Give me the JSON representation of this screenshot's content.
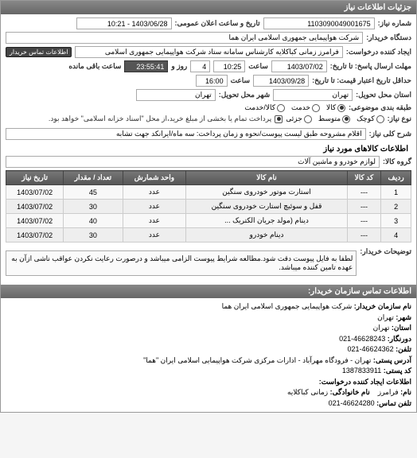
{
  "panel_title": "جزئیات اطلاعات نیاز",
  "request_number_label": "شماره نیاز:",
  "request_number": "1103090049001675",
  "datetime_label": "تاریخ و ساعت اعلان عمومی:",
  "datetime": "1403/06/28 - 10:21",
  "buyer_company_label": "دستگاه خریدار:",
  "buyer_company": "شرکت هواپیمایی جمهوری اسلامی ایران هما",
  "requester_label": "ایجاد کننده درخواست:",
  "requester": "فرامرز زمانی کباکلایه کارشناس سامانه ستاد شرکت هواپیمایی جمهوری اسلامی",
  "contact_btn": "اطلاعات تماس خریدار",
  "deadline_label": "مهلت ارسال پاسخ: تا تاریخ:",
  "deadline_date": "1403/07/02",
  "deadline_time_label": "ساعت",
  "deadline_time": "10:25",
  "remaining_days": "4",
  "remaining_days_label": "روز و",
  "remaining_time": "23:55:41",
  "remaining_suffix": "ساعت باقی مانده",
  "validity_label": "حداقل تاریخ اعتبار قیمت: تا تاریخ:",
  "validity_date": "1403/09/28",
  "validity_time_label": "ساعت",
  "validity_time": "16:00",
  "state_label": "استان محل تحویل:",
  "state": "تهران",
  "city_label": "شهر محل تحویل:",
  "city": "تهران",
  "package_label": "طبقه بندی موضوعی:",
  "radio_goods": "کالا",
  "radio_service": "خدمت",
  "radio_both": "کالا/خدمت",
  "size_label": "نوع نیاز:",
  "radio_small": "کوچک",
  "radio_medium": "متوسط",
  "radio_partial": "جزئی",
  "payment_note": "پرداخت تمام یا بخشی از مبلغ خرید،از محل \"اسناد خزانه اسلامی\" خواهد بود.",
  "desc_label": "شرح کلی نیاز:",
  "desc": "اقلام مشروحه طبق لیست پیوست/نحوه و زمان پرداخت: سه ماه/ایرانکد جهت تشابه",
  "goods_section_title": "اطلاعات کالاهای مورد نیاز",
  "group_label": "گروه کالا:",
  "group": "لوازم خودرو و ماشین آلات",
  "table": {
    "headers": [
      "ردیف",
      "کد کالا",
      "نام کالا",
      "واحد شمارش",
      "تعداد / مقدار",
      "تاریخ نیاز"
    ],
    "rows": [
      [
        "1",
        "---",
        "استارت موتور خودروی سنگین",
        "عدد",
        "45",
        "1403/07/02"
      ],
      [
        "2",
        "---",
        "قفل و سوئیچ استارت خودروی سنگین",
        "عدد",
        "30",
        "1403/07/02"
      ],
      [
        "3",
        "---",
        "دینام (مولد جریان الکتریک ...",
        "عدد",
        "40",
        "1403/07/02"
      ],
      [
        "4",
        "---",
        "دینام خودرو",
        "عدد",
        "30",
        "1403/07/02"
      ]
    ]
  },
  "buyer_note_label": "توضیحات خریدار:",
  "buyer_note": "لطفا به فایل پیوست دقت شود.مطالعه شرایط پیوست الزامی میباشد و درصورت رعایت نکردن عواقب ناشی ازآن به عهده تامین کننده میباشد.",
  "contact_header": "اطلاعات تماس سازمان خریدار:",
  "org_name_label": "نام سازمان خریدار:",
  "org_name": "شرکت هواپیمایی جمهوری اسلامی ایران هما",
  "org_city_label": "شهر:",
  "org_city": "تهران",
  "org_state_label": "استان:",
  "org_state": "تهران",
  "fax_label": "دورنگار:",
  "fax": "46628243-021",
  "phone_label": "تلفن:",
  "phone": "46624362-021",
  "address_label": "آدرس پستی:",
  "address": "تهران - فرودگاه مهرآباد - ادارات مرکزی شرکت هواپیمایی اسلامی ایران \"هما\"",
  "postal_label": "کد پستی:",
  "postal": "1387833911",
  "creator_header": "اطلاعات ایجاد کننده درخواست:",
  "creator_name_label": "نام:",
  "creator_name": "فرامرز",
  "creator_family_label": "نام خانوادگی:",
  "creator_family": "زمانی کباکلایه",
  "creator_phone_label": "تلفن تماس:",
  "creator_phone": "46624280-021",
  "colors": {
    "header_bg": "#6e6e6e",
    "th_bg": "#666666",
    "border": "#aaaaaa",
    "dark_field": "#555555"
  }
}
